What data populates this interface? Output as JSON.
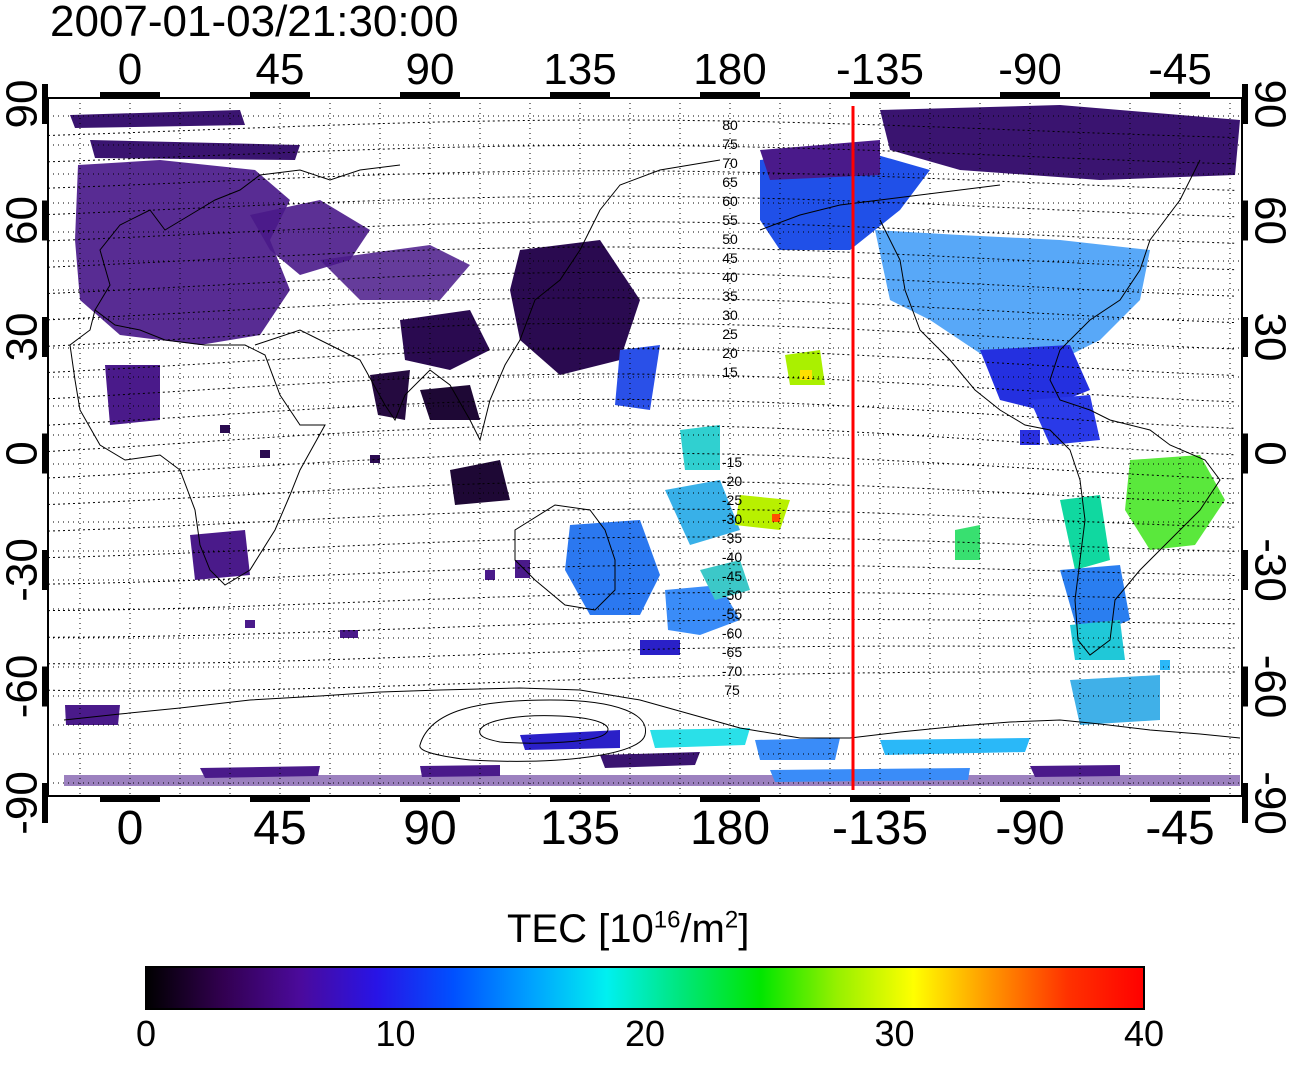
{
  "title": "2007-01-03/21:30:00",
  "map": {
    "lon_ticks": [
      "0",
      "45",
      "90",
      "135",
      "180",
      "-135",
      "-90",
      "-45"
    ],
    "lat_ticks": [
      "90",
      "60",
      "30",
      "0",
      "-30",
      "-60",
      "-90"
    ],
    "terminator_color": "#ff0000",
    "grid": "dotted",
    "contour_labels_north": [
      "80",
      "75",
      "70",
      "65",
      "60",
      "55",
      "50",
      "45",
      "40",
      "35",
      "30",
      "25",
      "20",
      "15"
    ],
    "contour_labels_south": [
      "-15",
      "-20",
      "-25",
      "-30",
      "-35",
      "-40",
      "-45",
      "-50",
      "-55",
      "-60",
      "-65",
      "-70",
      "75"
    ]
  },
  "colorbar": {
    "label_main": "TEC  [10",
    "label_exp1": "16",
    "label_mid": "/m",
    "label_exp2": "2",
    "label_end": "]",
    "ticks": [
      "0",
      "10",
      "20",
      "30",
      "40"
    ],
    "colormap": [
      "#000000",
      "#320050",
      "#4b0a9b",
      "#2814e6",
      "#0050ff",
      "#00a0ff",
      "#00f0f0",
      "#00e678",
      "#00e600",
      "#96f000",
      "#ffff00",
      "#ff9600",
      "#ff3200",
      "#ff0000"
    ]
  }
}
